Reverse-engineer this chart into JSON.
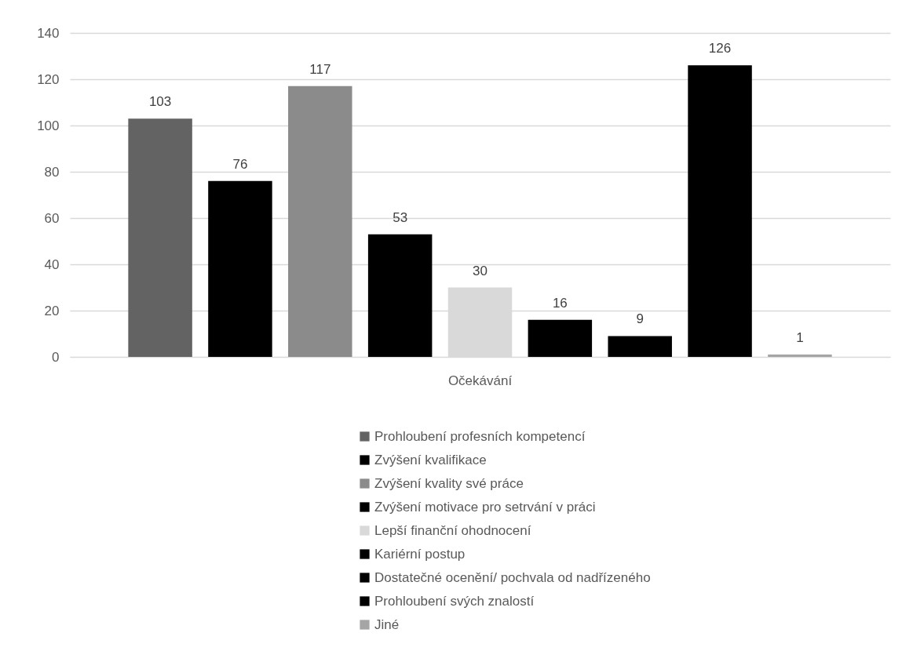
{
  "chart_data": {
    "type": "bar",
    "categories": [
      "Očekávání"
    ],
    "series": [
      {
        "name": "Prohloubení profesních kompetencí",
        "color": "#636363",
        "values": [
          103
        ]
      },
      {
        "name": "Zvýšení kvalifikace",
        "color": "#000000",
        "values": [
          76
        ]
      },
      {
        "name": "Zvýšení kvality své práce",
        "color": "#8b8b8b",
        "values": [
          117
        ]
      },
      {
        "name": "Zvýšení motivace pro setrvání v práci",
        "color": "#000000",
        "values": [
          53
        ]
      },
      {
        "name": "Lepší finanční ohodnocení",
        "color": "#d9d9d9",
        "values": [
          30
        ]
      },
      {
        "name": "Kariérní postup",
        "color": "#000000",
        "values": [
          16
        ]
      },
      {
        "name": "Dostatečné ocenění/ pochvala od nadřízeného",
        "color": "#000000",
        "values": [
          9
        ]
      },
      {
        "name": "Prohloubení svých znalostí",
        "color": "#000000",
        "values": [
          126
        ]
      },
      {
        "name": "Jiné",
        "color": "#a5a5a5",
        "values": [
          1
        ]
      }
    ],
    "ylim": [
      0,
      140
    ],
    "yticks": [
      0,
      20,
      40,
      60,
      80,
      100,
      120,
      140
    ],
    "grid": "y",
    "legend": "bottom",
    "data_labels": true
  }
}
